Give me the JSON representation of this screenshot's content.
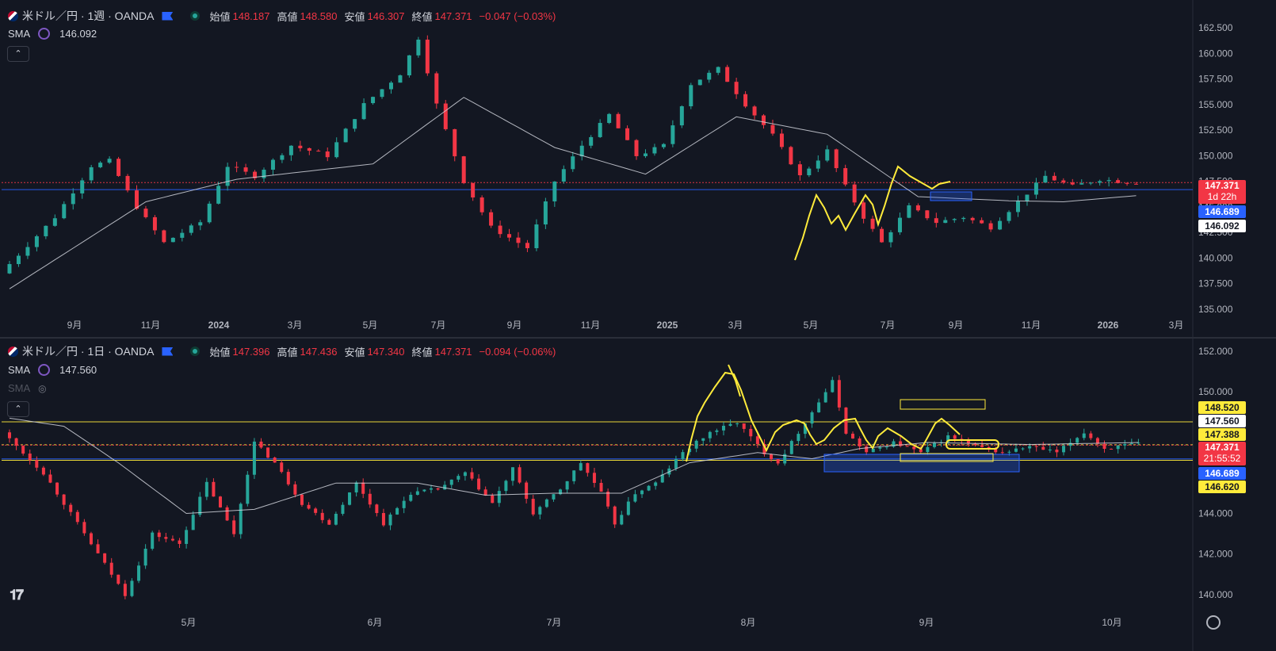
{
  "colors": {
    "background": "#131722",
    "up": "#26a69a",
    "down": "#f23645",
    "sma": "#d1d4dc",
    "annotation": "#ffeb3b",
    "zone": "#2962ff",
    "price_line": "#f23645"
  },
  "weekly": {
    "symbol": "米ドル／円 · 1週 · OANDA",
    "open_label": "始値",
    "open": "148.187",
    "high_label": "高値",
    "high": "148.580",
    "low_label": "安値",
    "low": "146.307",
    "close_label": "終値",
    "close": "147.371",
    "change": "−0.047 (−0.03%)",
    "sma_label": "SMA",
    "sma_value": "146.092",
    "price_tag": "147.371",
    "countdown": "1d 22h",
    "blue_tag": "146.689",
    "sma_tag": "146.092"
  },
  "daily": {
    "symbol": "米ドル／円 · 1日 · OANDA",
    "open_label": "始値",
    "open": "147.396",
    "high_label": "高値",
    "high": "147.436",
    "low_label": "安値",
    "low": "147.340",
    "close_label": "終値",
    "close": "147.371",
    "change": "−0.094 (−0.06%)",
    "sma_label": "SMA",
    "sma_value": "147.560",
    "sma2_label": "SMA",
    "tag_148520": "148.520",
    "tag_sma": "147.560",
    "tag_147388": "147.388",
    "price_tag": "147.371",
    "countdown": "21:55:52",
    "blue_tag": "146.689",
    "tag_146620": "146.620"
  },
  "icons": [
    "flag-icon",
    "live-dot-icon",
    "sma-settings-icon",
    "eye-hidden-icon",
    "collapse-icon",
    "tradingview-logo-icon",
    "gear-icon"
  ],
  "chart_data": [
    {
      "type": "candlestick",
      "title": "米ドル／円 · 1週 · OANDA",
      "ylim": [
        135.0,
        162.5
      ],
      "y_ticks": [
        "162.500",
        "160.000",
        "157.500",
        "155.000",
        "152.500",
        "150.000",
        "147.500",
        "145.000",
        "142.500",
        "140.000",
        "137.500",
        "135.000"
      ],
      "x_ticks": [
        "9月",
        "11月",
        "2024",
        "3月",
        "5月",
        "7月",
        "9月",
        "11月",
        "2025",
        "3月",
        "5月",
        "7月",
        "9月",
        "11月",
        "2026",
        "3月"
      ],
      "trend": [
        [
          0,
          138.5
        ],
        [
          6,
          144.0
        ],
        [
          10,
          149.0
        ],
        [
          12,
          149.5
        ],
        [
          15,
          145.0
        ],
        [
          18,
          141.5
        ],
        [
          22,
          143.5
        ],
        [
          25,
          149.0
        ],
        [
          28,
          148.0
        ],
        [
          32,
          151.0
        ],
        [
          36,
          150.0
        ],
        [
          40,
          155.0
        ],
        [
          44,
          158.0
        ],
        [
          46,
          161.5
        ],
        [
          48,
          155.0
        ],
        [
          51,
          147.5
        ],
        [
          54,
          143.0
        ],
        [
          58,
          141.0
        ],
        [
          61,
          147.5
        ],
        [
          64,
          151.0
        ],
        [
          67,
          154.0
        ],
        [
          70,
          150.0
        ],
        [
          73,
          151.0
        ],
        [
          76,
          157.0
        ],
        [
          79,
          158.5
        ],
        [
          82,
          155.0
        ],
        [
          85,
          152.0
        ],
        [
          88,
          148.0
        ],
        [
          91,
          150.5
        ],
        [
          93,
          147.0
        ],
        [
          95,
          144.0
        ],
        [
          97,
          141.5
        ],
        [
          100,
          145.0
        ],
        [
          103,
          143.5
        ],
        [
          106,
          144.0
        ],
        [
          109,
          143.0
        ],
        [
          112,
          145.5
        ],
        [
          115,
          148.0
        ],
        [
          118,
          147.0
        ],
        [
          121,
          147.7
        ],
        [
          124,
          147.4
        ]
      ],
      "sma": [
        [
          0,
          137.0
        ],
        [
          15,
          145.5
        ],
        [
          25,
          147.7
        ],
        [
          40,
          149.2
        ],
        [
          50,
          155.7
        ],
        [
          60,
          150.8
        ],
        [
          70,
          148.2
        ],
        [
          80,
          153.8
        ],
        [
          90,
          152.1
        ],
        [
          100,
          146.0
        ],
        [
          110,
          145.6
        ],
        [
          116,
          145.5
        ],
        [
          124,
          146.1
        ]
      ],
      "hlines": [
        146.689,
        147.371
      ]
    },
    {
      "type": "candlestick",
      "title": "米ドル／円 · 1日 · OANDA",
      "ylim": [
        139.6,
        152.0
      ],
      "y_ticks": [
        "152.000",
        "150.000",
        "148.000",
        "146.000",
        "144.000",
        "142.000",
        "140.000"
      ],
      "x_ticks": [
        "5月",
        "6月",
        "7月",
        "8月",
        "9月",
        "10月"
      ],
      "trend": [
        [
          0,
          148.0
        ],
        [
          6,
          146.0
        ],
        [
          10,
          144.0
        ],
        [
          14,
          142.0
        ],
        [
          18,
          140.0
        ],
        [
          22,
          143.0
        ],
        [
          26,
          142.5
        ],
        [
          30,
          145.5
        ],
        [
          34,
          143.0
        ],
        [
          37,
          147.5
        ],
        [
          40,
          146.5
        ],
        [
          44,
          144.5
        ],
        [
          48,
          143.5
        ],
        [
          52,
          145.5
        ],
        [
          56,
          143.5
        ],
        [
          60,
          145.0
        ],
        [
          64,
          145.2
        ],
        [
          68,
          146.0
        ],
        [
          72,
          144.5
        ],
        [
          75,
          146.2
        ],
        [
          78,
          144.0
        ],
        [
          82,
          145.2
        ],
        [
          85,
          146.5
        ],
        [
          88,
          145.0
        ],
        [
          90,
          143.5
        ],
        [
          93,
          145.0
        ],
        [
          96,
          145.5
        ],
        [
          100,
          147.0
        ],
        [
          104,
          148.0
        ],
        [
          108,
          148.5
        ],
        [
          112,
          147.0
        ],
        [
          114,
          146.5
        ],
        [
          118,
          148.5
        ],
        [
          122,
          150.5
        ],
        [
          124,
          148.0
        ],
        [
          127,
          147.0
        ],
        [
          131,
          147.5
        ],
        [
          135,
          147.0
        ],
        [
          139,
          147.8
        ],
        [
          143,
          147.3
        ],
        [
          147,
          147.0
        ],
        [
          151,
          147.3
        ],
        [
          155,
          147.0
        ],
        [
          159,
          148.0
        ],
        [
          162,
          147.2
        ],
        [
          166,
          147.4
        ]
      ],
      "sma": [
        [
          0,
          148.7
        ],
        [
          8,
          148.3
        ],
        [
          16,
          146.5
        ],
        [
          26,
          144.0
        ],
        [
          36,
          144.2
        ],
        [
          48,
          145.5
        ],
        [
          60,
          145.5
        ],
        [
          70,
          144.9
        ],
        [
          80,
          145.0
        ],
        [
          90,
          145.0
        ],
        [
          100,
          146.5
        ],
        [
          110,
          147.0
        ],
        [
          118,
          146.7
        ],
        [
          125,
          147.2
        ],
        [
          135,
          147.5
        ],
        [
          150,
          147.4
        ],
        [
          166,
          147.5
        ]
      ],
      "hlines": [
        148.52,
        147.388,
        147.371,
        146.689,
        146.62
      ]
    }
  ]
}
